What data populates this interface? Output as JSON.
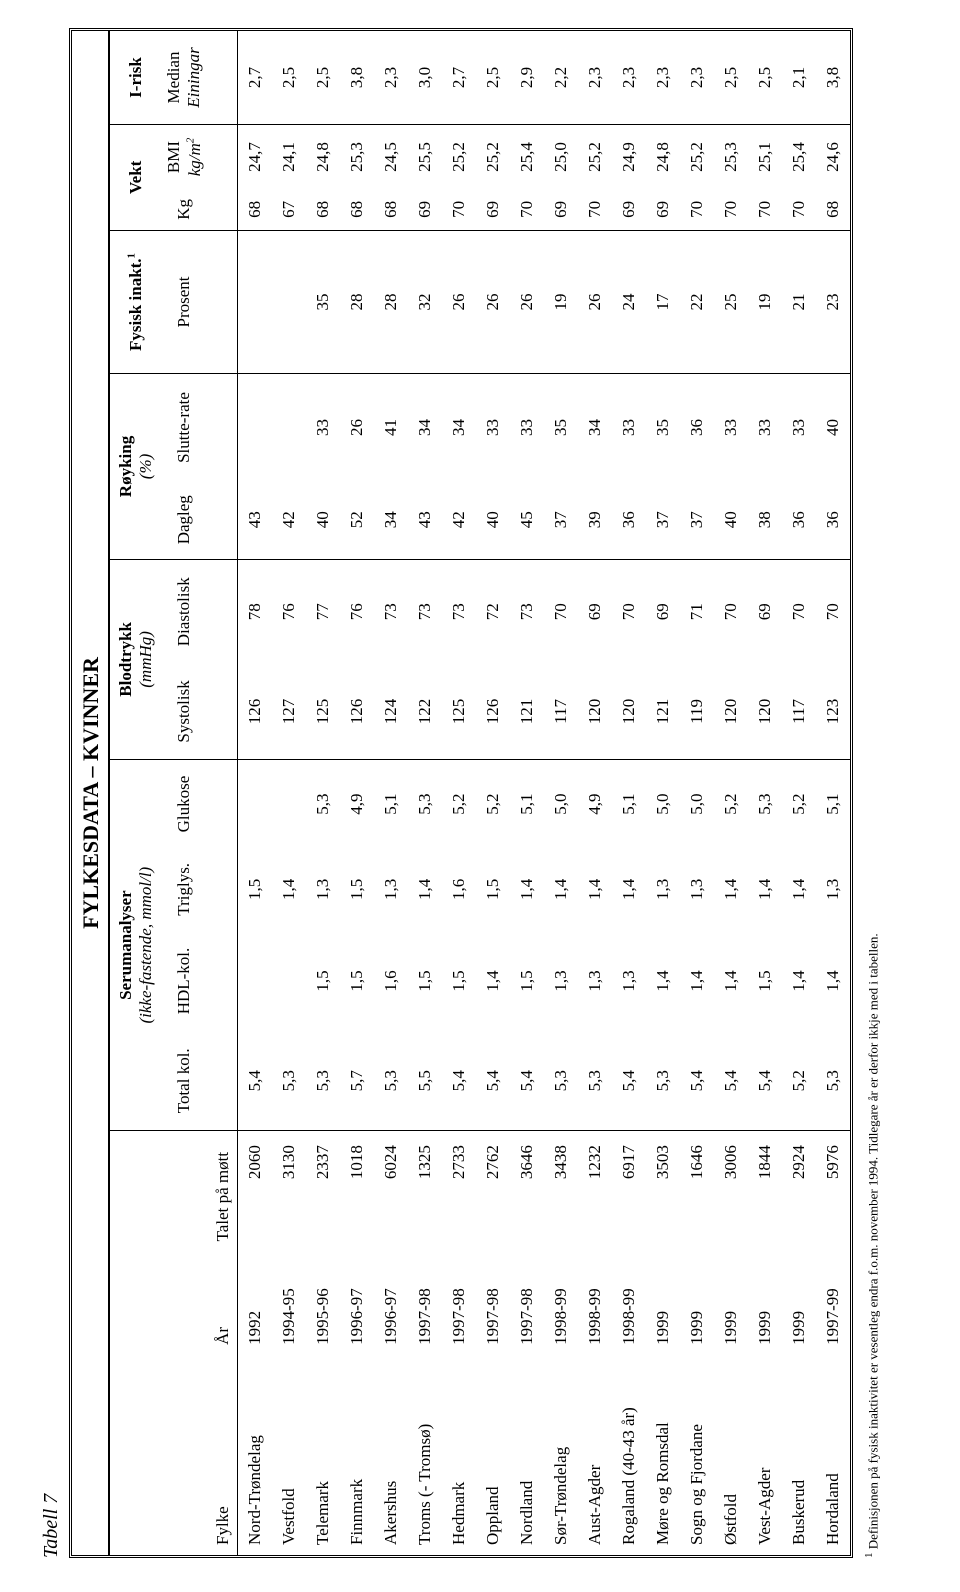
{
  "label": "Tabell 7",
  "title": "FYLKESDATA – KVINNER",
  "headers": {
    "fylke": "Fylke",
    "ar": "År",
    "mott": "Talet på møtt",
    "serum_group": "Serumanalyser",
    "serum_sub": "(ikke-fastende, mmol/l)",
    "total": "Total kol.",
    "hdl": "HDL-kol.",
    "triglys": "Triglys.",
    "glukose": "Glukose",
    "blod_group": "Blodtrykk",
    "blod_sub": "(mmHg)",
    "systo": "Systolisk",
    "diasto": "Diastolisk",
    "royk_group": "Røyking",
    "royk_sub": "(%)",
    "dagleg": "Dagleg",
    "slutte": "Slutte-rate",
    "fysisk_group": "Fysisk inakt.",
    "fysisk_sup": "1",
    "prosent": "Prosent",
    "vekt_group": "Vekt",
    "kg": "Kg",
    "bmi": "BMI",
    "bmi_unit": "kg/m",
    "bmi_sup": "2",
    "irisk_group": "I-risk",
    "median": "Median",
    "einingar": "Einingar"
  },
  "rows": [
    {
      "fylke": "Nord-Trøndelag",
      "ar": "1992",
      "mott": "2060",
      "total": "5,4",
      "hdl": "",
      "triglys": "1,5",
      "glukose": "",
      "systo": "126",
      "diasto": "78",
      "dagleg": "43",
      "slutte": "",
      "prosent": "",
      "kg": "68",
      "bmi": "24,7",
      "irisk": "2,7"
    },
    {
      "fylke": "Vestfold",
      "ar": "1994-95",
      "mott": "3130",
      "total": "5,3",
      "hdl": "",
      "triglys": "1,4",
      "glukose": "",
      "systo": "127",
      "diasto": "76",
      "dagleg": "42",
      "slutte": "",
      "prosent": "",
      "kg": "67",
      "bmi": "24,1",
      "irisk": "2,5"
    },
    {
      "fylke": "Telemark",
      "ar": "1995-96",
      "mott": "2337",
      "total": "5,3",
      "hdl": "1,5",
      "triglys": "1,3",
      "glukose": "5,3",
      "systo": "125",
      "diasto": "77",
      "dagleg": "40",
      "slutte": "33",
      "prosent": "35",
      "kg": "68",
      "bmi": "24,8",
      "irisk": "2,5"
    },
    {
      "fylke": "Finnmark",
      "ar": "1996-97",
      "mott": "1018",
      "total": "5,7",
      "hdl": "1,5",
      "triglys": "1,5",
      "glukose": "4,9",
      "systo": "126",
      "diasto": "76",
      "dagleg": "52",
      "slutte": "26",
      "prosent": "28",
      "kg": "68",
      "bmi": "25,3",
      "irisk": "3,8"
    },
    {
      "fylke": "Akershus",
      "ar": "1996-97",
      "mott": "6024",
      "total": "5,3",
      "hdl": "1,6",
      "triglys": "1,3",
      "glukose": "5,1",
      "systo": "124",
      "diasto": "73",
      "dagleg": "34",
      "slutte": "41",
      "prosent": "28",
      "kg": "68",
      "bmi": "24,5",
      "irisk": "2,3"
    },
    {
      "fylke": "Troms (- Tromsø)",
      "ar": "1997-98",
      "mott": "1325",
      "total": "5,5",
      "hdl": "1,5",
      "triglys": "1,4",
      "glukose": "5,3",
      "systo": "122",
      "diasto": "73",
      "dagleg": "43",
      "slutte": "34",
      "prosent": "32",
      "kg": "69",
      "bmi": "25,5",
      "irisk": "3,0"
    },
    {
      "fylke": "Hedmark",
      "ar": "1997-98",
      "mott": "2733",
      "total": "5,4",
      "hdl": "1,5",
      "triglys": "1,6",
      "glukose": "5,2",
      "systo": "125",
      "diasto": "73",
      "dagleg": "42",
      "slutte": "34",
      "prosent": "26",
      "kg": "70",
      "bmi": "25,2",
      "irisk": "2,7"
    },
    {
      "fylke": "Oppland",
      "ar": "1997-98",
      "mott": "2762",
      "total": "5,4",
      "hdl": "1,4",
      "triglys": "1,5",
      "glukose": "5,2",
      "systo": "126",
      "diasto": "72",
      "dagleg": "40",
      "slutte": "33",
      "prosent": "26",
      "kg": "69",
      "bmi": "25,2",
      "irisk": "2,5"
    },
    {
      "fylke": "Nordland",
      "ar": "1997-98",
      "mott": "3646",
      "total": "5,4",
      "hdl": "1,5",
      "triglys": "1,4",
      "glukose": "5,1",
      "systo": "121",
      "diasto": "73",
      "dagleg": "45",
      "slutte": "33",
      "prosent": "26",
      "kg": "70",
      "bmi": "25,4",
      "irisk": "2,9"
    },
    {
      "fylke": "Sør-Trøndelag",
      "ar": "1998-99",
      "mott": "3438",
      "total": "5,3",
      "hdl": "1,3",
      "triglys": "1,4",
      "glukose": "5,0",
      "systo": "117",
      "diasto": "70",
      "dagleg": "37",
      "slutte": "35",
      "prosent": "19",
      "kg": "69",
      "bmi": "25,0",
      "irisk": "2,2"
    },
    {
      "fylke": "Aust-Agder",
      "ar": "1998-99",
      "mott": "1232",
      "total": "5,3",
      "hdl": "1,3",
      "triglys": "1,4",
      "glukose": "4,9",
      "systo": "120",
      "diasto": "69",
      "dagleg": "39",
      "slutte": "34",
      "prosent": "26",
      "kg": "70",
      "bmi": "25,2",
      "irisk": "2,3"
    },
    {
      "fylke": "Rogaland (40-43 år)",
      "ar": "1998-99",
      "mott": "6917",
      "total": "5,4",
      "hdl": "1,3",
      "triglys": "1,4",
      "glukose": "5,1",
      "systo": "120",
      "diasto": "70",
      "dagleg": "36",
      "slutte": "33",
      "prosent": "24",
      "kg": "69",
      "bmi": "24,9",
      "irisk": "2,3"
    },
    {
      "fylke": "Møre og Romsdal",
      "ar": "1999",
      "mott": "3503",
      "total": "5,3",
      "hdl": "1,4",
      "triglys": "1,3",
      "glukose": "5,0",
      "systo": "121",
      "diasto": "69",
      "dagleg": "37",
      "slutte": "35",
      "prosent": "17",
      "kg": "69",
      "bmi": "24,8",
      "irisk": "2,3"
    },
    {
      "fylke": "Sogn og Fjordane",
      "ar": "1999",
      "mott": "1646",
      "total": "5,4",
      "hdl": "1,4",
      "triglys": "1,3",
      "glukose": "5,0",
      "systo": "119",
      "diasto": "71",
      "dagleg": "37",
      "slutte": "36",
      "prosent": "22",
      "kg": "70",
      "bmi": "25,2",
      "irisk": "2,3"
    },
    {
      "fylke": "Østfold",
      "ar": "1999",
      "mott": "3006",
      "total": "5,4",
      "hdl": "1,4",
      "triglys": "1,4",
      "glukose": "5,2",
      "systo": "120",
      "diasto": "70",
      "dagleg": "40",
      "slutte": "33",
      "prosent": "25",
      "kg": "70",
      "bmi": "25,3",
      "irisk": "2,5"
    },
    {
      "fylke": "Vest-Agder",
      "ar": "1999",
      "mott": "1844",
      "total": "5,4",
      "hdl": "1,5",
      "triglys": "1,4",
      "glukose": "5,3",
      "systo": "120",
      "diasto": "69",
      "dagleg": "38",
      "slutte": "33",
      "prosent": "19",
      "kg": "70",
      "bmi": "25,1",
      "irisk": "2,5"
    },
    {
      "fylke": "Buskerud",
      "ar": "1999",
      "mott": "2924",
      "total": "5,2",
      "hdl": "1,4",
      "triglys": "1,4",
      "glukose": "5,2",
      "systo": "117",
      "diasto": "70",
      "dagleg": "36",
      "slutte": "33",
      "prosent": "21",
      "kg": "70",
      "bmi": "25,4",
      "irisk": "2,1"
    },
    {
      "fylke": "Hordaland",
      "ar": "1997-99",
      "mott": "5976",
      "total": "5,3",
      "hdl": "1,4",
      "triglys": "1,3",
      "glukose": "5,1",
      "systo": "123",
      "diasto": "70",
      "dagleg": "36",
      "slutte": "40",
      "prosent": "23",
      "kg": "68",
      "bmi": "24,6",
      "irisk": "3,8"
    }
  ],
  "footnote_sup": "1",
  "footnote": " Definisjonen på fysisk inaktivitet er vesentleg endra f.o.m. november 1994. Tidlegare år er derfor ikkje med i tabellen.",
  "style": {
    "border_color": "#000000",
    "background": "#ffffff",
    "font": "Times New Roman",
    "title_fontsize": 22,
    "body_fontsize": 17,
    "footnote_fontsize": 13
  }
}
